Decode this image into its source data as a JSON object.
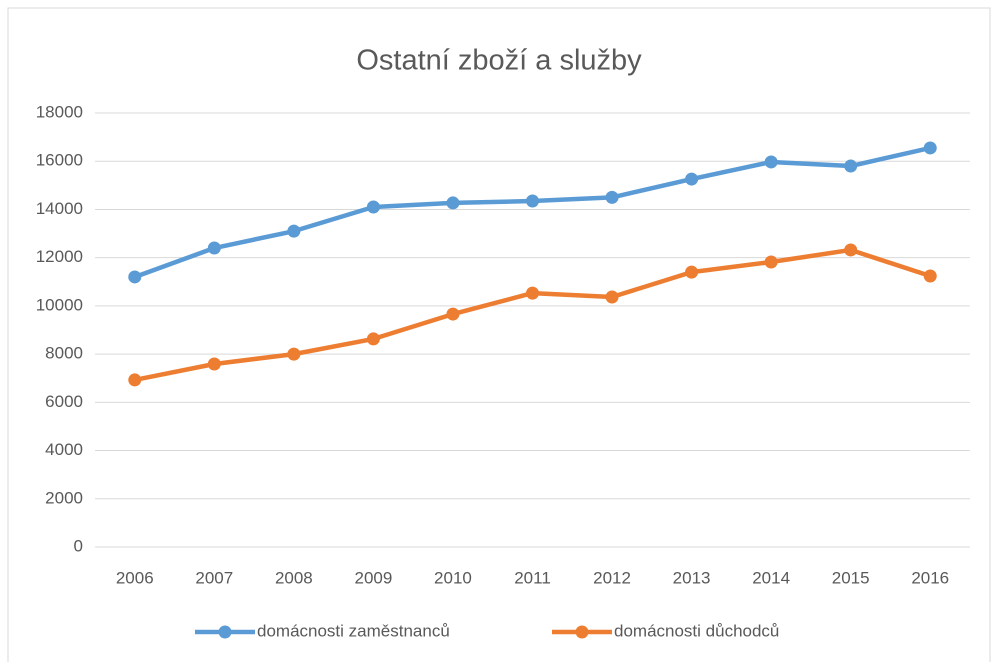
{
  "chart_data": {
    "type": "line",
    "title": "Ostatní zboží a služby",
    "categories": [
      "2006",
      "2007",
      "2008",
      "2009",
      "2010",
      "2011",
      "2012",
      "2013",
      "2014",
      "2015",
      "2016"
    ],
    "series": [
      {
        "name": "domácnosti zaměstnanců",
        "color": "#5b9bd5",
        "values": [
          11200,
          12400,
          13100,
          14100,
          14270,
          14350,
          14500,
          15260,
          15970,
          15800,
          16550
        ]
      },
      {
        "name": "domácnosti důchodců",
        "color": "#ed7d31",
        "values": [
          6930,
          7590,
          8000,
          8630,
          9660,
          10530,
          10370,
          11400,
          11820,
          12320,
          11240
        ]
      }
    ],
    "ylim": [
      0,
      18000
    ],
    "yticks": [
      0,
      2000,
      4000,
      6000,
      8000,
      10000,
      12000,
      14000,
      16000,
      18000
    ],
    "grid": true,
    "legend": "bottom"
  }
}
